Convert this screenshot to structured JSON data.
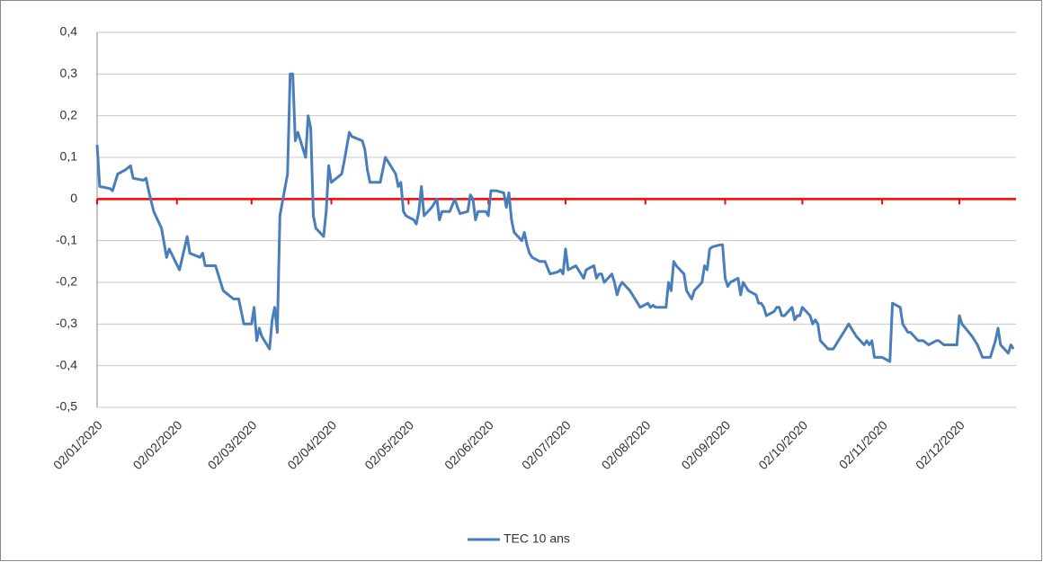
{
  "chart_data": {
    "type": "line",
    "x": [
      "02/01/2020",
      "03/01/2020",
      "07/01/2020",
      "08/01/2020",
      "10/01/2020",
      "13/01/2020",
      "15/01/2020",
      "16/01/2020",
      "20/01/2020",
      "21/01/2020",
      "22/01/2020",
      "24/01/2020",
      "27/01/2020",
      "29/01/2020",
      "30/01/2020",
      "03/02/2020",
      "06/02/2020",
      "07/02/2020",
      "11/02/2020",
      "12/02/2020",
      "13/02/2020",
      "17/02/2020",
      "18/02/2020",
      "20/02/2020",
      "24/02/2020",
      "26/02/2020",
      "28/02/2020",
      "02/03/2020",
      "03/03/2020",
      "04/03/2020",
      "05/03/2020",
      "06/03/2020",
      "09/03/2020",
      "10/03/2020",
      "11/03/2020",
      "12/03/2020",
      "13/03/2020",
      "16/03/2020",
      "17/03/2020",
      "18/03/2020",
      "19/03/2020",
      "20/03/2020",
      "23/03/2020",
      "24/03/2020",
      "25/03/2020",
      "26/03/2020",
      "27/03/2020",
      "30/03/2020",
      "31/03/2020",
      "01/04/2020",
      "02/04/2020",
      "06/04/2020",
      "07/04/2020",
      "09/04/2020",
      "10/04/2020",
      "14/04/2020",
      "15/04/2020",
      "16/04/2020",
      "17/04/2020",
      "21/04/2020",
      "23/04/2020",
      "24/04/2020",
      "27/04/2020",
      "28/04/2020",
      "29/04/2020",
      "30/04/2020",
      "01/05/2020",
      "04/05/2020",
      "05/05/2020",
      "06/05/2020",
      "07/05/2020",
      "08/05/2020",
      "11/05/2020",
      "12/05/2020",
      "13/05/2020",
      "14/05/2020",
      "15/05/2020",
      "18/05/2020",
      "20/05/2020",
      "21/05/2020",
      "22/05/2020",
      "25/05/2020",
      "26/05/2020",
      "27/05/2020",
      "28/05/2020",
      "29/05/2020",
      "01/06/2020",
      "02/06/2020",
      "03/06/2020",
      "05/06/2020",
      "08/06/2020",
      "09/06/2020",
      "10/06/2020",
      "11/06/2020",
      "12/06/2020",
      "15/06/2020",
      "16/06/2020",
      "17/06/2020",
      "18/06/2020",
      "19/06/2020",
      "22/06/2020",
      "24/06/2020",
      "26/06/2020",
      "29/06/2020",
      "30/06/2020",
      "01/07/2020",
      "02/07/2020",
      "03/07/2020",
      "06/07/2020",
      "07/07/2020",
      "08/07/2020",
      "09/07/2020",
      "10/07/2020",
      "13/07/2020",
      "14/07/2020",
      "15/07/2020",
      "16/07/2020",
      "17/07/2020",
      "20/07/2020",
      "21/07/2020",
      "22/07/2020",
      "23/07/2020",
      "24/07/2020",
      "27/07/2020",
      "29/07/2020",
      "30/07/2020",
      "31/07/2020",
      "03/08/2020",
      "04/08/2020",
      "05/08/2020",
      "06/08/2020",
      "10/08/2020",
      "11/08/2020",
      "12/08/2020",
      "13/08/2020",
      "14/08/2020",
      "17/08/2020",
      "18/08/2020",
      "19/08/2020",
      "20/08/2020",
      "21/08/2020",
      "24/08/2020",
      "25/08/2020",
      "26/08/2020",
      "27/08/2020",
      "28/08/2020",
      "31/08/2020",
      "01/09/2020",
      "02/09/2020",
      "03/09/2020",
      "04/09/2020",
      "07/09/2020",
      "08/09/2020",
      "09/09/2020",
      "10/09/2020",
      "11/09/2020",
      "14/09/2020",
      "15/09/2020",
      "16/09/2020",
      "17/09/2020",
      "18/09/2020",
      "21/09/2020",
      "22/09/2020",
      "23/09/2020",
      "24/09/2020",
      "25/09/2020",
      "28/09/2020",
      "29/09/2020",
      "30/09/2020",
      "01/10/2020",
      "02/10/2020",
      "05/10/2020",
      "06/10/2020",
      "07/10/2020",
      "08/10/2020",
      "09/10/2020",
      "12/10/2020",
      "14/10/2020",
      "15/10/2020",
      "19/10/2020",
      "20/10/2020",
      "22/10/2020",
      "23/10/2020",
      "26/10/2020",
      "27/10/2020",
      "28/10/2020",
      "29/10/2020",
      "30/10/2020",
      "02/11/2020",
      "05/11/2020",
      "06/11/2020",
      "09/11/2020",
      "10/11/2020",
      "12/11/2020",
      "13/11/2020",
      "16/11/2020",
      "18/11/2020",
      "20/11/2020",
      "23/11/2020",
      "24/11/2020",
      "26/11/2020",
      "30/11/2020",
      "01/12/2020",
      "02/12/2020",
      "03/12/2020",
      "07/12/2020",
      "09/12/2020",
      "11/12/2020",
      "14/12/2020",
      "16/12/2020",
      "17/12/2020",
      "18/12/2020",
      "21/12/2020",
      "22/12/2020",
      "23/12/2020"
    ],
    "series": [
      {
        "name": "TEC 10 ans",
        "color": "#4a7ebb",
        "values": [
          0.13,
          0.03,
          0.025,
          0.02,
          0.06,
          0.07,
          0.08,
          0.05,
          0.045,
          0.05,
          0.02,
          -0.03,
          -0.07,
          -0.14,
          -0.12,
          -0.17,
          -0.09,
          -0.13,
          -0.14,
          -0.13,
          -0.16,
          -0.16,
          -0.18,
          -0.22,
          -0.24,
          -0.24,
          -0.3,
          -0.3,
          -0.26,
          -0.34,
          -0.31,
          -0.33,
          -0.36,
          -0.29,
          -0.26,
          -0.32,
          -0.04,
          0.06,
          0.3,
          0.3,
          0.14,
          0.16,
          0.1,
          0.2,
          0.17,
          -0.04,
          -0.07,
          -0.09,
          -0.03,
          0.08,
          0.04,
          0.06,
          0.09,
          0.16,
          0.15,
          0.14,
          0.12,
          0.07,
          0.04,
          0.04,
          0.1,
          0.09,
          0.06,
          0.03,
          0.04,
          -0.03,
          -0.04,
          -0.05,
          -0.06,
          -0.03,
          0.03,
          -0.04,
          -0.02,
          -0.01,
          0.0,
          -0.05,
          -0.03,
          -0.03,
          0.0,
          -0.02,
          -0.035,
          -0.03,
          0.01,
          0.0,
          -0.05,
          -0.03,
          -0.03,
          -0.04,
          0.02,
          0.02,
          0.015,
          -0.02,
          0.015,
          -0.05,
          -0.08,
          -0.1,
          -0.08,
          -0.11,
          -0.13,
          -0.14,
          -0.15,
          -0.15,
          -0.18,
          -0.175,
          -0.17,
          -0.18,
          -0.12,
          -0.17,
          -0.16,
          -0.17,
          -0.18,
          -0.19,
          -0.17,
          -0.16,
          -0.19,
          -0.18,
          -0.18,
          -0.2,
          -0.18,
          -0.2,
          -0.23,
          -0.21,
          -0.2,
          -0.22,
          -0.24,
          -0.25,
          -0.26,
          -0.25,
          -0.26,
          -0.255,
          -0.26,
          -0.26,
          -0.2,
          -0.22,
          -0.15,
          -0.16,
          -0.18,
          -0.22,
          -0.23,
          -0.24,
          -0.22,
          -0.2,
          -0.16,
          -0.17,
          -0.12,
          -0.115,
          -0.11,
          -0.11,
          -0.19,
          -0.21,
          -0.2,
          -0.19,
          -0.23,
          -0.2,
          -0.21,
          -0.22,
          -0.23,
          -0.25,
          -0.25,
          -0.26,
          -0.28,
          -0.27,
          -0.26,
          -0.26,
          -0.28,
          -0.28,
          -0.26,
          -0.29,
          -0.28,
          -0.28,
          -0.26,
          -0.28,
          -0.3,
          -0.29,
          -0.3,
          -0.34,
          -0.36,
          -0.36,
          -0.35,
          -0.31,
          -0.3,
          -0.32,
          -0.33,
          -0.35,
          -0.34,
          -0.35,
          -0.34,
          -0.38,
          -0.38,
          -0.39,
          -0.25,
          -0.26,
          -0.3,
          -0.32,
          -0.32,
          -0.34,
          -0.34,
          -0.35,
          -0.34,
          -0.34,
          -0.35,
          -0.35,
          -0.35,
          -0.28,
          -0.3,
          -0.33,
          -0.35,
          -0.38,
          -0.38,
          -0.34,
          -0.31,
          -0.35,
          -0.37,
          -0.35,
          -0.36
        ]
      }
    ],
    "xlim": [
      "02/01/2020",
      "24/12/2020"
    ],
    "xticks": [
      "02/01/2020",
      "02/02/2020",
      "02/03/2020",
      "02/04/2020",
      "02/05/2020",
      "02/06/2020",
      "02/07/2020",
      "02/08/2020",
      "02/09/2020",
      "02/10/2020",
      "02/11/2020",
      "02/12/2020"
    ],
    "ylim": [
      -0.5,
      0.4
    ],
    "yticks": [
      {
        "value": -0.5,
        "label": "-0,5"
      },
      {
        "value": -0.4,
        "label": "-0,4"
      },
      {
        "value": -0.3,
        "label": "-0,3"
      },
      {
        "value": -0.2,
        "label": "-0,2"
      },
      {
        "value": -0.1,
        "label": "-0,1"
      },
      0,
      {
        "value": 0.1,
        "label": "0,1"
      },
      {
        "value": 0.2,
        "label": "0,2"
      },
      {
        "value": 0.3,
        "label": "0,3"
      },
      {
        "value": 0.4,
        "label": "0,4"
      }
    ],
    "grid": true,
    "x_axis_at": 0,
    "x_axis_color": "#ff0000",
    "legend": "bottom"
  }
}
